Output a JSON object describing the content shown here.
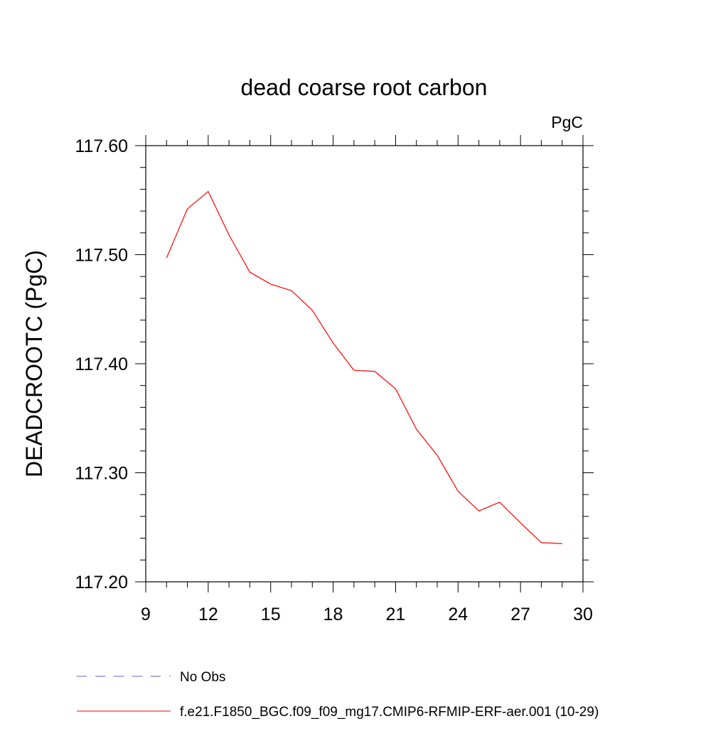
{
  "chart_data": {
    "type": "line",
    "title": "dead coarse root carbon",
    "units_label": "PgC",
    "ylabel": "DEADCROOTC  (PgC)",
    "xlabel": "",
    "xlim": [
      9,
      30
    ],
    "ylim": [
      117.2,
      117.6
    ],
    "x_ticks": [
      9,
      12,
      15,
      18,
      21,
      24,
      27,
      30
    ],
    "x_tick_labels": [
      "9",
      "12",
      "15",
      "18",
      "21",
      "24",
      "27",
      "30"
    ],
    "y_ticks": [
      117.2,
      117.3,
      117.4,
      117.5,
      117.6
    ],
    "y_tick_labels": [
      "117.20",
      "117.30",
      "117.40",
      "117.50",
      "117.60"
    ],
    "x_minor_step": 1,
    "y_minor_step": 0.02,
    "grid": false,
    "legend_position": "bottom",
    "series": [
      {
        "name": "f.e21.F1850_BGC.f09_f09_mg17.CMIP6-RFMIP-ERF-aer.001 (10-29)",
        "color": "#ff0000",
        "dash": "solid",
        "x": [
          10,
          11,
          12,
          13,
          14,
          15,
          16,
          17,
          18,
          19,
          20,
          21,
          22,
          23,
          24,
          25,
          26,
          27,
          28,
          29
        ],
        "values": [
          117.497,
          117.542,
          117.558,
          117.518,
          117.484,
          117.473,
          117.467,
          117.449,
          117.419,
          117.394,
          117.393,
          117.377,
          117.34,
          117.316,
          117.283,
          117.265,
          117.273,
          117.254,
          117.236,
          117.235
        ]
      }
    ],
    "legend": [
      {
        "label": "No Obs",
        "color": "#6a5acd",
        "dash": "dashed"
      },
      {
        "label": "f.e21.F1850_BGC.f09_f09_mg17.CMIP6-RFMIP-ERF-aer.001 (10-29)",
        "color": "#ff0000",
        "dash": "solid"
      }
    ]
  }
}
